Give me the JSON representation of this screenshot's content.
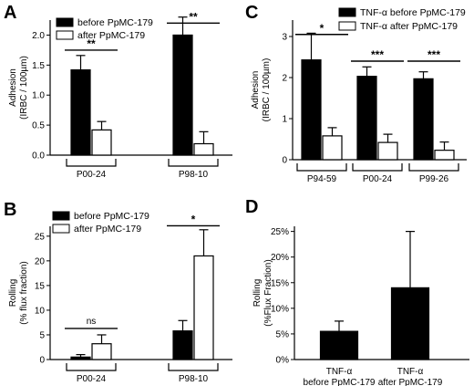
{
  "colors": {
    "before": "#000000",
    "after": "#ffffff",
    "stroke": "#000000"
  },
  "chart_data": [
    {
      "panel": "A",
      "type": "bar",
      "ylabel": [
        "Adhesion",
        "(IRBC / 100µm)"
      ],
      "ylim": [
        0,
        2.25
      ],
      "yticks": [
        0.0,
        0.5,
        1.0,
        1.5,
        2.0
      ],
      "tick_labels": [
        "0.0",
        "0.5",
        "1.0",
        "1.5",
        "2.0"
      ],
      "categories": [
        "P00-24",
        "P98-10"
      ],
      "legend_position": "top-left",
      "series": [
        {
          "name": "before PpMC-179",
          "key": "before",
          "values": [
            1.42,
            2.0
          ],
          "errors": [
            0.24,
            0.3
          ]
        },
        {
          "name": "after PpMC-179",
          "key": "after",
          "values": [
            0.42,
            0.19
          ],
          "errors": [
            0.14,
            0.2
          ]
        }
      ],
      "significance": [
        {
          "label": "**",
          "category": 0,
          "y": 1.75
        },
        {
          "label": "**",
          "category": 1,
          "y": 2.2
        }
      ]
    },
    {
      "panel": "C",
      "type": "bar",
      "ylabel": [
        "Adhesion",
        "(IRBC / 100µm)"
      ],
      "ylim": [
        0,
        3.4
      ],
      "yticks": [
        0,
        1,
        2,
        3
      ],
      "tick_labels": [
        "0",
        "1",
        "2",
        "3"
      ],
      "categories": [
        "P94-59",
        "P00-24",
        "P99-26"
      ],
      "legend_position": "top-right",
      "series": [
        {
          "name": "TNF-α before PpMC-179",
          "key": "before",
          "values": [
            2.43,
            2.03,
            1.97
          ],
          "errors": [
            0.65,
            0.23,
            0.17
          ]
        },
        {
          "name": "TNF-α after PpMC-179",
          "key": "after",
          "values": [
            0.58,
            0.42,
            0.23
          ],
          "errors": [
            0.2,
            0.2,
            0.2
          ]
        }
      ],
      "significance": [
        {
          "label": "*",
          "category": 0,
          "y": 3.05
        },
        {
          "label": "***",
          "category": 1,
          "y": 2.4
        },
        {
          "label": "***",
          "category": 2,
          "y": 2.4
        }
      ]
    },
    {
      "panel": "B",
      "type": "bar",
      "ylabel": [
        "Rolling",
        "(% flux fraction)"
      ],
      "ylim": [
        0,
        27
      ],
      "yticks": [
        0,
        5,
        10,
        15,
        20,
        25
      ],
      "tick_labels": [
        "0",
        "5",
        "10",
        "15",
        "20",
        "25"
      ],
      "categories": [
        "P00-24",
        "P98-10"
      ],
      "legend_position": "top-left",
      "series": [
        {
          "name": "before PpMC-179",
          "key": "before",
          "values": [
            0.5,
            5.8
          ],
          "errors": [
            0.5,
            2.1
          ]
        },
        {
          "name": "after PpMC-179",
          "key": "after",
          "values": [
            3.2,
            21.0
          ],
          "errors": [
            1.8,
            5.3
          ]
        }
      ],
      "significance": [
        {
          "label": "ns",
          "category": 0,
          "y": 6.3
        },
        {
          "label": "*",
          "category": 1,
          "y": 27.1
        }
      ]
    },
    {
      "panel": "D",
      "type": "bar",
      "ylabel": [
        "Rolling",
        "(%Flux Fraction)"
      ],
      "ylim": [
        0,
        26
      ],
      "yticks": [
        0,
        5,
        10,
        15,
        20,
        25
      ],
      "tick_labels": [
        "0%",
        "5%",
        "10%",
        "15%",
        "20%",
        "25%"
      ],
      "categories": [
        [
          "TNF-α",
          "before PpMC-179"
        ],
        [
          "TNF-α",
          "after PpMC-179"
        ]
      ],
      "legend_position": "none",
      "series": [
        {
          "key": "before",
          "values": [
            5.5,
            14.0
          ],
          "errors": [
            2.0,
            11.0
          ]
        }
      ],
      "significance": []
    }
  ]
}
